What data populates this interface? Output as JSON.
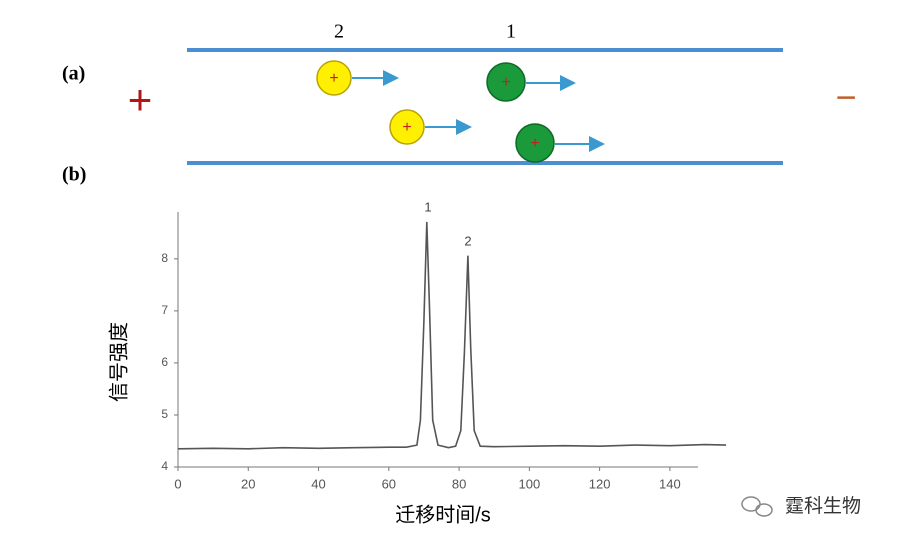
{
  "diagram": {
    "panel_a": "(a)",
    "panel_b": "(b)",
    "particle_labels": [
      "2",
      "1"
    ],
    "anode": "+",
    "cathode": "−",
    "particle_charge": "+"
  },
  "watermark": "霆科生物",
  "chart_data": {
    "type": "line",
    "xlabel": "迁移时间/s",
    "ylabel": "信号强度",
    "peak_labels": [
      "1",
      "2"
    ],
    "series": [
      {
        "color": "#555555",
        "x": [
          0,
          10,
          20,
          30,
          40,
          50,
          60,
          65,
          68,
          69,
          70,
          70.8,
          71.6,
          72.5,
          74,
          77,
          79,
          80.5,
          81.5,
          82.5,
          83.3,
          84.3,
          86,
          90,
          100,
          110,
          120,
          130,
          140,
          150,
          156
        ],
        "values": [
          4.35,
          4.36,
          4.35,
          4.37,
          4.36,
          4.37,
          4.38,
          4.38,
          4.42,
          4.9,
          6.8,
          8.71,
          7.0,
          4.9,
          4.42,
          4.37,
          4.4,
          4.7,
          6.2,
          8.06,
          6.3,
          4.7,
          4.4,
          4.39,
          4.4,
          4.41,
          4.4,
          4.42,
          4.41,
          4.43,
          4.42
        ]
      }
    ],
    "xlim": [
      0,
      148
    ],
    "ylim": [
      4,
      8.9
    ],
    "xticks": [
      0,
      20,
      40,
      60,
      80,
      100,
      120,
      140
    ],
    "yticks": [
      4,
      5,
      6,
      7,
      8
    ]
  }
}
